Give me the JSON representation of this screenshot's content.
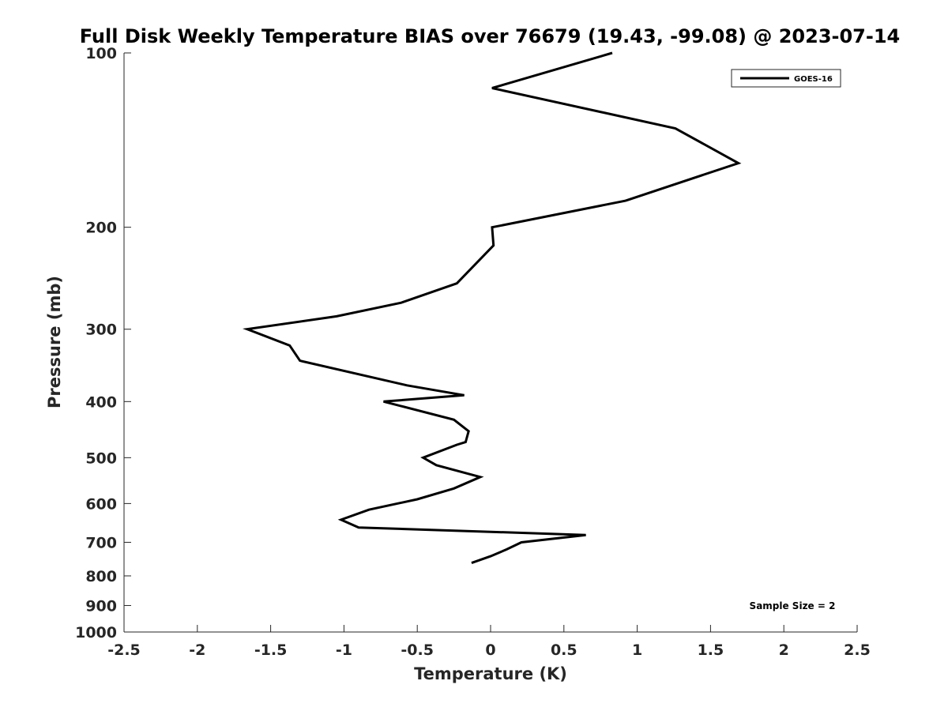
{
  "chart_data": {
    "type": "line",
    "title": "Full Disk Weekly Temperature BIAS over 76679 (19.43, -99.08) @ 2023-07-14",
    "xlabel": "Temperature (K)",
    "ylabel": "Pressure (mb)",
    "xlim": [
      -2.5,
      2.5
    ],
    "ylim": [
      100,
      1000
    ],
    "y_scale": "log",
    "y_reversed": true,
    "grid": false,
    "x_ticks": [
      "-2.5",
      "-2",
      "-1.5",
      "-1",
      "-0.5",
      "0",
      "0.5",
      "1",
      "1.5",
      "2",
      "2.5"
    ],
    "y_ticks": [
      "100",
      "200",
      "300",
      "400",
      "500",
      "600",
      "700",
      "800",
      "900",
      "1000"
    ],
    "legend_position": "top-right",
    "color": "#000000",
    "series": [
      {
        "name": "GOES-16",
        "points": [
          {
            "x": 0.83,
            "y": 100
          },
          {
            "x": 0.01,
            "y": 115
          },
          {
            "x": 1.26,
            "y": 135
          },
          {
            "x": 1.69,
            "y": 155
          },
          {
            "x": 0.92,
            "y": 180
          },
          {
            "x": 0.01,
            "y": 200
          },
          {
            "x": 0.02,
            "y": 215
          },
          {
            "x": -0.23,
            "y": 250
          },
          {
            "x": -0.61,
            "y": 270
          },
          {
            "x": -1.05,
            "y": 285
          },
          {
            "x": -1.66,
            "y": 300
          },
          {
            "x": -1.37,
            "y": 320
          },
          {
            "x": -1.3,
            "y": 340
          },
          {
            "x": -0.57,
            "y": 375
          },
          {
            "x": -0.18,
            "y": 390
          },
          {
            "x": -0.73,
            "y": 400
          },
          {
            "x": -0.25,
            "y": 430
          },
          {
            "x": -0.15,
            "y": 450
          },
          {
            "x": -0.17,
            "y": 470
          },
          {
            "x": -0.23,
            "y": 475
          },
          {
            "x": -0.46,
            "y": 500
          },
          {
            "x": -0.37,
            "y": 515
          },
          {
            "x": -0.07,
            "y": 540
          },
          {
            "x": -0.25,
            "y": 565
          },
          {
            "x": -0.5,
            "y": 590
          },
          {
            "x": -0.83,
            "y": 615
          },
          {
            "x": -1.02,
            "y": 640
          },
          {
            "x": -0.9,
            "y": 660
          },
          {
            "x": 0.65,
            "y": 680
          },
          {
            "x": 0.21,
            "y": 700
          },
          {
            "x": 0.11,
            "y": 720
          },
          {
            "x": 0.0,
            "y": 740
          },
          {
            "x": -0.13,
            "y": 760
          }
        ]
      }
    ],
    "annotation": "Sample Size = 2"
  }
}
